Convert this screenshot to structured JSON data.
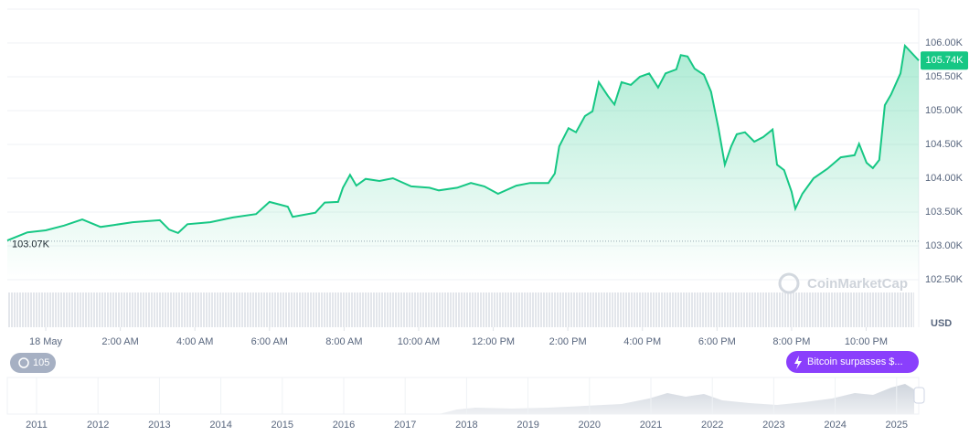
{
  "chart_data": {
    "type": "line",
    "color": "#16c784",
    "x": [
      -1.03,
      -0.49,
      0,
      0.49,
      0.98,
      1.47,
      1.84,
      2.33,
      3.06,
      3.31,
      3.55,
      3.8,
      4.41,
      5.02,
      5.64,
      6.0,
      6.49,
      6.62,
      7.23,
      7.48,
      7.84,
      7.97,
      8.16,
      8.33,
      8.58,
      8.95,
      9.31,
      9.8,
      10.29,
      10.54,
      11.03,
      11.4,
      11.76,
      12.13,
      12.62,
      12.99,
      13.48,
      13.65,
      13.77,
      14.02,
      14.22,
      14.46,
      14.66,
      14.83,
      15.07,
      15.25,
      15.44,
      15.69,
      15.93,
      16.18,
      16.42,
      16.62,
      16.91,
      17.03,
      17.21,
      17.4,
      17.65,
      17.84,
      18.04,
      18.21,
      18.38,
      18.53,
      18.75,
      19.0,
      19.24,
      19.49,
      19.61,
      19.8,
      20.0,
      20.1,
      20.29,
      20.59,
      20.96,
      21.32,
      21.69,
      21.81,
      22.01,
      22.18,
      22.35,
      22.5,
      22.67,
      22.92,
      23.04,
      23.41
    ],
    "values": [
      103.08,
      103.2,
      103.23,
      103.3,
      103.39,
      103.28,
      103.31,
      103.35,
      103.38,
      103.24,
      103.19,
      103.32,
      103.35,
      103.42,
      103.47,
      103.65,
      103.58,
      103.43,
      103.49,
      103.64,
      103.65,
      103.86,
      104.05,
      103.89,
      103.99,
      103.96,
      104.0,
      103.88,
      103.86,
      103.82,
      103.86,
      103.93,
      103.88,
      103.77,
      103.89,
      103.93,
      103.93,
      104.07,
      104.47,
      104.74,
      104.68,
      104.92,
      104.99,
      105.42,
      105.22,
      105.09,
      105.42,
      105.38,
      105.5,
      105.55,
      105.34,
      105.55,
      105.61,
      105.82,
      105.8,
      105.62,
      105.53,
      105.28,
      104.74,
      104.2,
      104.47,
      104.65,
      104.68,
      104.54,
      104.61,
      104.72,
      104.2,
      104.12,
      103.8,
      103.55,
      103.77,
      104.0,
      104.14,
      104.31,
      104.34,
      104.51,
      104.23,
      104.15,
      104.27,
      105.08,
      105.24,
      105.55,
      105.96,
      105.74
    ],
    "xlim": [
      -1.03,
      23.41
    ],
    "ylim": [
      102.5,
      106.5
    ],
    "xticks": [
      {
        "value": 0,
        "label": "18 May"
      },
      {
        "value": 2,
        "label": "2:00 AM"
      },
      {
        "value": 4,
        "label": "4:00 AM"
      },
      {
        "value": 6,
        "label": "6:00 AM"
      },
      {
        "value": 8,
        "label": "8:00 AM"
      },
      {
        "value": 10,
        "label": "10:00 AM"
      },
      {
        "value": 12,
        "label": "12:00 PM"
      },
      {
        "value": 14,
        "label": "2:00 PM"
      },
      {
        "value": 16,
        "label": "4:00 PM"
      },
      {
        "value": 18,
        "label": "6:00 PM"
      },
      {
        "value": 20,
        "label": "8:00 PM"
      },
      {
        "value": 22,
        "label": "10:00 PM"
      }
    ],
    "yticks": [
      {
        "value": 102.5,
        "label": "102.50K"
      },
      {
        "value": 103,
        "label": "103.00K"
      },
      {
        "value": 103.5,
        "label": "103.50K"
      },
      {
        "value": 104,
        "label": "104.00K"
      },
      {
        "value": 104.5,
        "label": "104.50K"
      },
      {
        "value": 105,
        "label": "105.00K"
      },
      {
        "value": 105.5,
        "label": "105.50K"
      },
      {
        "value": 106,
        "label": "106.00K"
      }
    ],
    "grid": true,
    "open_price": {
      "value": 103.07,
      "label": "103.07K"
    },
    "current_price": {
      "value": 105.74,
      "label": "105.74K"
    },
    "currency": "USD",
    "watermark": "CoinMarketCap",
    "badge_count": "105",
    "event_badge": "Bitcoin surpasses $...",
    "navigator_labels": [
      "2011",
      "2012",
      "2013",
      "2014",
      "2015",
      "2016",
      "2017",
      "2018",
      "2019",
      "2020",
      "2021",
      "2022",
      "2023",
      "2024",
      "2025"
    ]
  }
}
